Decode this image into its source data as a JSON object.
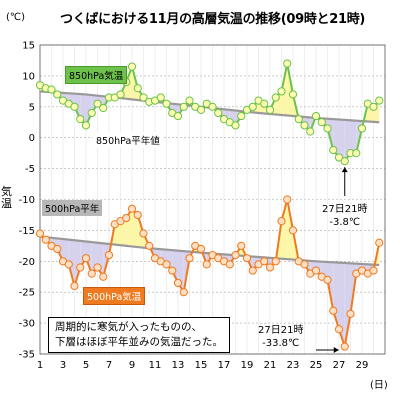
{
  "title": "つくばにおける11月の高層気温の推移(09時と21時)",
  "unit_label": "(℃)",
  "y_axis_label": "気温",
  "x_axis_unit": "(日)",
  "labels": {
    "series_850": "850hPa気温",
    "series_500": "500hPa気温",
    "normal_850": "850hPa平年値",
    "normal_500": "500hPa平年"
  },
  "annotations": {
    "min_850_time": "27日21時",
    "min_850_value": "-3.8℃",
    "min_500_time": "27日21時",
    "min_500_value": "-33.8℃"
  },
  "note_lines": [
    "周期的に寒気が入ったものの、",
    "下層はほぼ平年並みの気温だった。"
  ],
  "colors": {
    "series_850": "#6cc24a",
    "marker_850_fill": "#fdfdb4",
    "warm_fill": "#fbf6a8",
    "cold_fill": "#d6d2ee",
    "series_500": "#f07a20",
    "marker_500_fill": "#fde0c4",
    "normal_line": "#999999",
    "grid": "#a8a8a8",
    "arrow": "#000000"
  },
  "chart_data": {
    "type": "line",
    "title": "つくばにおける11月の高層気温の推移(09時と21時)",
    "xlabel": "(日)",
    "ylabel": "気温",
    "ylim": [
      -35,
      15
    ],
    "xlim": [
      1,
      31
    ],
    "yticks": [
      15,
      10,
      5,
      0,
      -5,
      -10,
      -15,
      -20,
      -25,
      -30,
      -35
    ],
    "xticks": [
      1,
      3,
      5,
      7,
      9,
      11,
      13,
      15,
      17,
      19,
      21,
      23,
      25,
      27,
      29
    ],
    "grid": true,
    "series": [
      {
        "name": "850hPa気温",
        "x": [
          1,
          1.5,
          2,
          2.5,
          3,
          3.5,
          4,
          4.5,
          5,
          5.5,
          6,
          6.5,
          7,
          7.5,
          8,
          8.5,
          9,
          9.5,
          10,
          10.5,
          11,
          11.5,
          12,
          12.5,
          13,
          13.5,
          14,
          14.5,
          15,
          15.5,
          16,
          16.5,
          17,
          17.5,
          18,
          18.5,
          19,
          19.5,
          20,
          20.5,
          21,
          21.5,
          22,
          22.5,
          23,
          23.5,
          24,
          24.5,
          25,
          25.5,
          26,
          26.5,
          27,
          27.5,
          28,
          28.5,
          29,
          29.5,
          30,
          30.5
        ],
        "values": [
          8.5,
          8.0,
          7.8,
          7.0,
          6.0,
          5.5,
          5.0,
          3.0,
          2.0,
          4.0,
          5.5,
          4.8,
          6.5,
          6.5,
          7.0,
          9.0,
          11.5,
          8.0,
          6.5,
          5.8,
          6.0,
          6.5,
          5.5,
          4.0,
          3.5,
          5.0,
          6.0,
          5.0,
          4.5,
          5.5,
          5.0,
          4.0,
          3.0,
          2.5,
          2.0,
          3.5,
          4.5,
          5.0,
          6.0,
          5.5,
          4.5,
          6.5,
          7.5,
          12.0,
          7.0,
          3.0,
          2.0,
          1.0,
          3.5,
          2.5,
          1.5,
          -2.0,
          -3.2,
          -3.8,
          -2.5,
          -2.5,
          1.5,
          5.5,
          5.0,
          6.0
        ]
      },
      {
        "name": "850hPa平年値",
        "x": [
          1,
          5,
          10,
          15,
          20,
          25,
          30.5
        ],
        "values": [
          7.5,
          7.0,
          6.0,
          5.0,
          4.0,
          3.2,
          2.5
        ]
      },
      {
        "name": "500hPa気温",
        "x": [
          1,
          1.5,
          2,
          2.5,
          3,
          3.5,
          4,
          4.5,
          5,
          5.5,
          6,
          6.5,
          7,
          7.5,
          8,
          8.5,
          9,
          9.5,
          10,
          10.5,
          11,
          11.5,
          12,
          12.5,
          13,
          13.5,
          14,
          14.5,
          15,
          15.5,
          16,
          16.5,
          17,
          17.5,
          18,
          18.5,
          19,
          19.5,
          20,
          20.5,
          21,
          21.5,
          22,
          22.5,
          23,
          23.5,
          24,
          24.5,
          25,
          25.5,
          26,
          26.5,
          27,
          27.5,
          28,
          28.5,
          29,
          29.5,
          30,
          30.5
        ],
        "values": [
          -15.5,
          -16.5,
          -17.5,
          -18.0,
          -20.0,
          -20.5,
          -24.0,
          -21.0,
          -19.5,
          -22.0,
          -21.0,
          -22.5,
          -19.0,
          -14.0,
          -13.5,
          -13.0,
          -11.5,
          -12.5,
          -15.5,
          -17.5,
          -19.5,
          -20.0,
          -20.5,
          -21.5,
          -23.5,
          -25.0,
          -19.5,
          -17.5,
          -18.0,
          -20.5,
          -19.0,
          -19.5,
          -20.0,
          -20.5,
          -19.0,
          -17.5,
          -19.5,
          -21.5,
          -20.5,
          -20.0,
          -21.0,
          -20.0,
          -13.5,
          -10.0,
          -15.0,
          -20.0,
          -20.5,
          -22.0,
          -21.5,
          -22.5,
          -23.0,
          -28.0,
          -31.0,
          -33.8,
          -28.5,
          -22.0,
          -21.5,
          -22.0,
          -21.5,
          -17.0
        ]
      },
      {
        "name": "500hPa平年",
        "x": [
          1,
          5,
          10,
          15,
          20,
          25,
          30.5
        ],
        "values": [
          -16.0,
          -16.8,
          -17.8,
          -18.6,
          -19.3,
          -20.0,
          -20.6
        ]
      }
    ],
    "highlighted_points": [
      {
        "series": "850hPa気温",
        "x": 27.5,
        "label": "27日21時",
        "value_label": "-3.8℃"
      },
      {
        "series": "500hPa気温",
        "x": 27.5,
        "label": "27日21時",
        "value_label": "-33.8℃"
      }
    ]
  }
}
